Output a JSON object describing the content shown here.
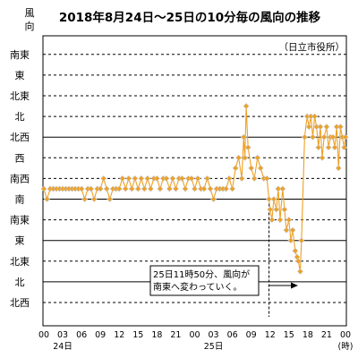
{
  "chart_data": {
    "type": "line",
    "title": "2018年8月24日～25日の10分毎の風向の推移",
    "ylabel": "風向",
    "xlabel": "(時)",
    "station": "（日立市役所）",
    "y_categories": [
      "北西",
      "北",
      "北東",
      "東",
      "南東",
      "南",
      "南西",
      "西",
      "北西",
      "北",
      "北東",
      "東",
      "南東"
    ],
    "solid_grid": [
      "東",
      "北",
      "南",
      "北西"
    ],
    "x_ticks": [
      "00",
      "03",
      "06",
      "09",
      "12",
      "15",
      "18",
      "21",
      "00",
      "03",
      "06",
      "09",
      "12",
      "15",
      "18",
      "21",
      "00"
    ],
    "day_labels": [
      {
        "text": "24日",
        "hour": 3
      },
      {
        "text": "25日",
        "hour": 27
      }
    ],
    "xlim": [
      0,
      48
    ],
    "annotation": {
      "line1": "25日11時50分、風向が",
      "line2": "南東へ変わっていく。",
      "hour": 35.83
    },
    "series": [
      {
        "color": "#f0a020",
        "marker_color": "#c8c8c8",
        "points": [
          [
            0.0,
            5.5
          ],
          [
            0.5,
            5.0
          ],
          [
            1.0,
            5.5
          ],
          [
            1.5,
            5.5
          ],
          [
            2.0,
            5.5
          ],
          [
            2.5,
            5.5
          ],
          [
            3.0,
            5.5
          ],
          [
            3.5,
            5.5
          ],
          [
            4.0,
            5.5
          ],
          [
            4.5,
            5.5
          ],
          [
            5.0,
            5.5
          ],
          [
            5.5,
            5.5
          ],
          [
            6.0,
            5.5
          ],
          [
            6.5,
            5.0
          ],
          [
            7.0,
            5.5
          ],
          [
            7.5,
            5.5
          ],
          [
            8.0,
            5.0
          ],
          [
            8.5,
            5.5
          ],
          [
            9.0,
            5.5
          ],
          [
            9.5,
            6.0
          ],
          [
            10.0,
            5.5
          ],
          [
            10.5,
            5.0
          ],
          [
            11.0,
            5.5
          ],
          [
            11.5,
            5.5
          ],
          [
            12.0,
            5.5
          ],
          [
            12.5,
            6.0
          ],
          [
            13.0,
            5.5
          ],
          [
            13.5,
            6.0
          ],
          [
            14.0,
            5.5
          ],
          [
            14.5,
            6.0
          ],
          [
            15.0,
            5.5
          ],
          [
            15.5,
            6.0
          ],
          [
            16.0,
            5.5
          ],
          [
            16.5,
            6.0
          ],
          [
            17.0,
            5.5
          ],
          [
            17.5,
            6.0
          ],
          [
            18.0,
            6.0
          ],
          [
            18.5,
            5.5
          ],
          [
            19.0,
            6.0
          ],
          [
            19.5,
            6.0
          ],
          [
            20.0,
            5.5
          ],
          [
            20.5,
            6.0
          ],
          [
            21.0,
            5.5
          ],
          [
            21.5,
            6.0
          ],
          [
            22.0,
            6.0
          ],
          [
            22.5,
            5.5
          ],
          [
            23.0,
            6.0
          ],
          [
            23.5,
            6.0
          ],
          [
            24.0,
            5.5
          ],
          [
            24.5,
            6.0
          ],
          [
            25.0,
            5.5
          ],
          [
            25.5,
            5.5
          ],
          [
            26.0,
            6.0
          ],
          [
            26.5,
            5.5
          ],
          [
            27.0,
            5.0
          ],
          [
            27.5,
            5.5
          ],
          [
            28.0,
            5.5
          ],
          [
            28.5,
            5.5
          ],
          [
            29.0,
            5.5
          ],
          [
            29.5,
            6.0
          ],
          [
            30.0,
            5.5
          ],
          [
            30.5,
            6.5
          ],
          [
            31.0,
            7.0
          ],
          [
            31.5,
            6.0
          ],
          [
            31.8,
            8.0
          ],
          [
            32.0,
            7.0
          ],
          [
            32.2,
            9.5
          ],
          [
            32.5,
            7.5
          ],
          [
            33.0,
            6.5
          ],
          [
            33.5,
            6.0
          ],
          [
            34.0,
            7.0
          ],
          [
            34.5,
            6.5
          ],
          [
            35.0,
            6.0
          ],
          [
            35.5,
            6.0
          ],
          [
            35.83,
            5.0
          ],
          [
            36.0,
            4.5
          ],
          [
            36.3,
            4.0
          ],
          [
            36.6,
            5.0
          ],
          [
            37.0,
            4.5
          ],
          [
            37.3,
            5.5
          ],
          [
            37.6,
            4.0
          ],
          [
            38.0,
            5.5
          ],
          [
            38.3,
            4.5
          ],
          [
            38.6,
            3.5
          ],
          [
            39.0,
            4.0
          ],
          [
            39.3,
            3.0
          ],
          [
            39.6,
            3.5
          ],
          [
            40.0,
            2.5
          ],
          [
            40.3,
            2.2
          ],
          [
            40.5,
            2.0
          ],
          [
            40.8,
            1.5
          ],
          [
            41.0,
            3.0
          ],
          [
            41.5,
            8.0
          ],
          [
            41.9,
            9.0
          ],
          [
            42.2,
            8.5
          ],
          [
            42.5,
            9.0
          ],
          [
            42.8,
            8.0
          ],
          [
            43.1,
            9.0
          ],
          [
            43.4,
            8.5
          ],
          [
            43.7,
            7.5
          ],
          [
            44.0,
            8.5
          ],
          [
            44.3,
            7.0
          ],
          [
            44.6,
            8.0
          ],
          [
            45.0,
            8.5
          ],
          [
            45.3,
            7.5
          ],
          [
            45.6,
            8.0
          ],
          [
            46.0,
            8.0
          ],
          [
            46.3,
            7.5
          ],
          [
            46.6,
            8.5
          ],
          [
            46.9,
            6.5
          ],
          [
            47.2,
            8.5
          ],
          [
            47.5,
            8.0
          ],
          [
            47.8,
            7.5
          ],
          [
            48.0,
            8.0
          ]
        ]
      }
    ]
  }
}
